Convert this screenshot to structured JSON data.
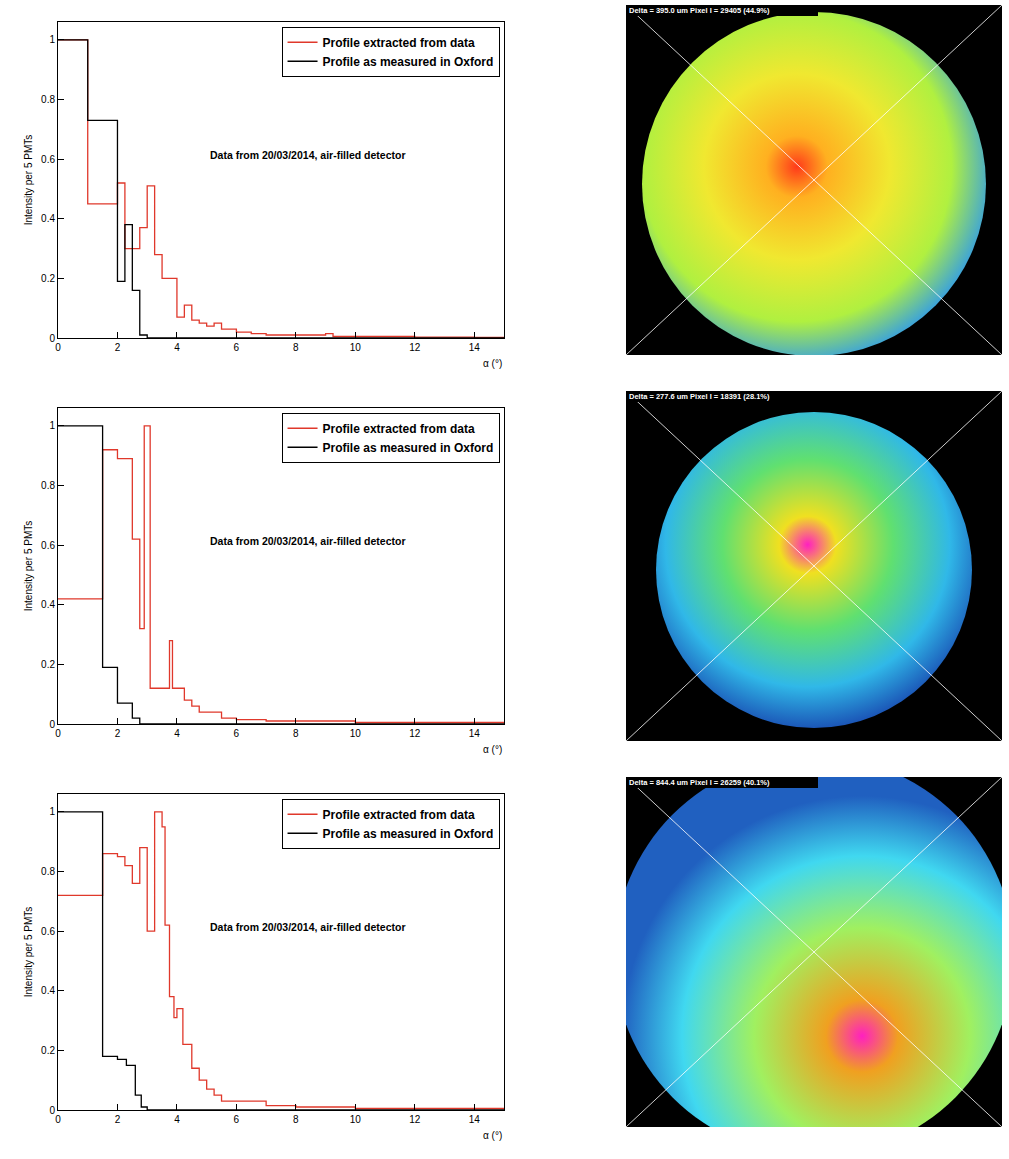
{
  "chart_data": [
    {
      "type": "histogram",
      "xlabel": "α (°)",
      "ylabel": "Intensity per 5 PMTs",
      "annotation": "Data from 20/03/2014, air-filled detector",
      "xlim": [
        0,
        15
      ],
      "ylim": [
        0,
        1.06
      ],
      "xticks": [
        0,
        2,
        4,
        6,
        8,
        10,
        12,
        14
      ],
      "yticks": [
        0,
        0.2,
        0.4,
        0.6,
        0.8,
        1
      ],
      "legend": "upper right",
      "grid": false,
      "series": [
        {
          "name": "Profile extracted from data",
          "color": "#e0382b",
          "bins": [
            0,
            1,
            2,
            2.25,
            2.75,
            3,
            3.25,
            3.5,
            4,
            4.25,
            4.5,
            4.75,
            5,
            5.25,
            5.5,
            5.75,
            6,
            6.5,
            7,
            7.5,
            8,
            9,
            9.25,
            10,
            11,
            12,
            13,
            14,
            15
          ],
          "values": [
            1.0,
            0.45,
            0.52,
            0.3,
            0.37,
            0.51,
            0.28,
            0.2,
            0.07,
            0.11,
            0.06,
            0.05,
            0.04,
            0.05,
            0.03,
            0.03,
            0.02,
            0.015,
            0.01,
            0.01,
            0.01,
            0.015,
            0.005,
            0.005,
            0.005,
            0.003,
            0.003,
            0.002
          ]
        },
        {
          "name": "Profile as measured in Oxford",
          "color": "#000000",
          "bins": [
            0,
            1,
            2,
            2.25,
            2.5,
            2.75,
            3,
            15
          ],
          "values": [
            1.0,
            0.73,
            0.19,
            0.38,
            0.16,
            0.01,
            0
          ]
        }
      ]
    },
    {
      "type": "histogram",
      "xlabel": "α (°)",
      "ylabel": "Intensity per 5 PMTs",
      "annotation": "Data from 20/03/2014, air-filled detector",
      "xlim": [
        0,
        15
      ],
      "ylim": [
        0,
        1.06
      ],
      "xticks": [
        0,
        2,
        4,
        6,
        8,
        10,
        12,
        14
      ],
      "yticks": [
        0,
        0.2,
        0.4,
        0.6,
        0.8,
        1
      ],
      "legend": "upper right",
      "grid": false,
      "series": [
        {
          "name": "Profile extracted from data",
          "color": "#e0382b",
          "bins": [
            0,
            1.5,
            2,
            2.5,
            2.75,
            2.9,
            3.1,
            3.75,
            3.85,
            4.25,
            4.5,
            4.75,
            5,
            5.5,
            6,
            7,
            8,
            10,
            15
          ],
          "values": [
            0.42,
            0.92,
            0.89,
            0.62,
            0.32,
            1.0,
            0.12,
            0.28,
            0.12,
            0.08,
            0.06,
            0.04,
            0.04,
            0.02,
            0.015,
            0.01,
            0.01,
            0.005
          ]
        },
        {
          "name": "Profile as measured in Oxford",
          "color": "#000000",
          "bins": [
            0,
            1.5,
            2,
            2.5,
            2.75,
            15
          ],
          "values": [
            1.0,
            0.19,
            0.07,
            0.02,
            0
          ]
        }
      ]
    },
    {
      "type": "histogram",
      "xlabel": "α (°)",
      "ylabel": "Intensity per 5 PMTs",
      "annotation": "Data from 20/03/2014, air-filled detector",
      "xlim": [
        0,
        15
      ],
      "ylim": [
        0,
        1.06
      ],
      "xticks": [
        0,
        2,
        4,
        6,
        8,
        10,
        12,
        14
      ],
      "yticks": [
        0,
        0.2,
        0.4,
        0.6,
        0.8,
        1
      ],
      "legend": "upper right",
      "grid": false,
      "series": [
        {
          "name": "Profile extracted from data",
          "color": "#e0382b",
          "bins": [
            0,
            1.5,
            2,
            2.25,
            2.5,
            2.75,
            3,
            3.25,
            3.5,
            3.6,
            3.75,
            3.9,
            4,
            4.2,
            4.5,
            4.75,
            5,
            5.25,
            5.5,
            6,
            7,
            8,
            10,
            15
          ],
          "values": [
            0.72,
            0.86,
            0.85,
            0.82,
            0.76,
            0.88,
            0.6,
            1.0,
            0.95,
            0.62,
            0.38,
            0.31,
            0.34,
            0.22,
            0.14,
            0.1,
            0.07,
            0.05,
            0.03,
            0.03,
            0.015,
            0.01,
            0.005
          ]
        },
        {
          "name": "Profile as measured in Oxford",
          "color": "#000000",
          "bins": [
            0,
            1.5,
            2,
            2.3,
            2.6,
            2.8,
            3,
            15
          ],
          "values": [
            1.0,
            0.18,
            0.17,
            0.15,
            0.05,
            0.01,
            0
          ]
        }
      ]
    }
  ],
  "images": [
    {
      "label": "Delta = 395.0 um Pixel I = 29405 (44.9%)"
    },
    {
      "label": "Delta = 277.6 um Pixel I = 18391 (28.1%)"
    },
    {
      "label": "Delta = 844.4 um Pixel I = 26259 (40.1%)"
    }
  ]
}
